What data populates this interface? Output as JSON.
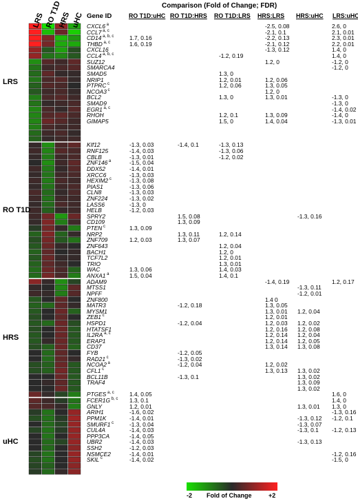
{
  "heatmap_columns": [
    "LRS",
    "RO T1D",
    "HRS",
    "uHC"
  ],
  "header": {
    "title": "Comparison (Fold of Change; FDR)",
    "gene_id": "Gene ID",
    "comparisons": [
      "RO T1D:uHC",
      "RO T1D:HRS",
      "RO T1D:LRS",
      "HRS:LRS",
      "HRS:uHC",
      "LRS:uHC"
    ]
  },
  "groups": [
    {
      "label": "LRS",
      "start": 0,
      "end": 19
    },
    {
      "label": "RO T1D",
      "start": 20,
      "end": 42
    },
    {
      "label": "HRS",
      "start": 43,
      "end": 62
    },
    {
      "label": "uHC",
      "start": 63,
      "end": 77
    }
  ],
  "legend": {
    "min": "-2",
    "label": "Fold of Change",
    "max": "+2"
  },
  "colors": {
    "low": "#19e000",
    "mid": "#2a2a2a",
    "high": "#ff2020"
  },
  "genes": [
    {
      "name": "CXCL6",
      "sup": "a",
      "heat": [
        2.6,
        -2.0,
        1.0,
        -1.4
      ],
      "vals": [
        "",
        "",
        "",
        "-2.5, 0.08",
        "",
        "2.6, 0"
      ]
    },
    {
      "name": "CCL7",
      "sup": "a, c",
      "heat": [
        2.1,
        -1.6,
        0.6,
        -1.8
      ],
      "vals": [
        "",
        "",
        "",
        "-2.1, 0.1",
        "",
        "2.1, 0.01"
      ]
    },
    {
      "name": "CD14",
      "sup": "a, b, c",
      "heat": [
        2.0,
        0.8,
        -1.6,
        -1.2
      ],
      "vals": [
        "1.7, 0.16",
        "",
        "",
        "-2.2, 0.13",
        "",
        "2.3, 0.01"
      ]
    },
    {
      "name": "THBD",
      "sup": "a, c",
      "heat": [
        2.0,
        0.7,
        -1.4,
        -1.4
      ],
      "vals": [
        "1.6, 0.19",
        "",
        "",
        "-2.1, 0.12",
        "",
        "2.2, 0.01"
      ]
    },
    {
      "name": "CXCL16",
      "sup": "",
      "heat": [
        1.0,
        -0.5,
        -1.3,
        -0.4
      ],
      "vals": [
        "",
        "",
        "",
        "-1.3, 0.12",
        "",
        "1.4, 0"
      ]
    },
    {
      "name": "CCL4",
      "sup": "a, b, c",
      "heat": [
        1.0,
        -0.8,
        -1.0,
        -0.5
      ],
      "vals": [
        "",
        "",
        "-1.2, 0.19",
        "",
        "",
        "1.4, 0"
      ]
    },
    {
      "name": "SUZ12",
      "sup": "",
      "heat": [
        -1.1,
        0.4,
        0.2,
        0.5
      ],
      "vals": [
        "",
        "",
        "",
        "1.2, 0",
        "",
        "-1.2, 0"
      ]
    },
    {
      "name": "SMARCA4",
      "sup": "",
      "heat": [
        -0.8,
        0.2,
        0.3,
        0.4
      ],
      "vals": [
        "",
        "",
        "",
        "",
        "",
        "-1.2, 0"
      ]
    },
    {
      "name": "SMAD5",
      "sup": "",
      "heat": [
        -0.7,
        0.5,
        0.1,
        0.1
      ],
      "vals": [
        "",
        "",
        "1.3, 0",
        "",
        "",
        ""
      ]
    },
    {
      "name": "NRIP1",
      "sup": "",
      "heat": [
        -0.8,
        0.3,
        0.4,
        0.1
      ],
      "vals": [
        "",
        "",
        "1.2, 0.01",
        "1.2, 0.06",
        "",
        ""
      ]
    },
    {
      "name": "PTPRC",
      "sup": "c",
      "heat": [
        -0.6,
        0.4,
        0.3,
        0.0
      ],
      "vals": [
        "",
        "",
        "1.2, 0.06",
        "1.3, 0.05",
        "",
        ""
      ]
    },
    {
      "name": "NCOA3",
      "sup": "c",
      "heat": [
        -0.5,
        0.2,
        0.3,
        0.1
      ],
      "vals": [
        "",
        "",
        "",
        "1.2, 0",
        "",
        ""
      ]
    },
    {
      "name": "BCL2",
      "sup": "",
      "heat": [
        -0.9,
        0.3,
        0.4,
        0.2
      ],
      "vals": [
        "",
        "",
        "1.3, 0",
        "1.3, 0.01",
        "",
        "-1.3, 0"
      ]
    },
    {
      "name": "SMAD9",
      "sup": "",
      "heat": [
        -0.8,
        0.1,
        0.2,
        0.3
      ],
      "vals": [
        "",
        "",
        "",
        "",
        "",
        "-1.3, 0"
      ]
    },
    {
      "name": "EGR1",
      "sup": "a, c",
      "heat": [
        -1.0,
        0.3,
        0.1,
        0.4
      ],
      "vals": [
        "",
        "",
        "",
        "",
        "",
        "-1.4, 0.02"
      ]
    },
    {
      "name": "RHOH",
      "sup": "",
      "heat": [
        -1.0,
        0.4,
        0.5,
        0.3
      ],
      "vals": [
        "",
        "",
        "1.2, 0.1",
        "1.3, 0.09",
        "",
        "-1.4, 0"
      ]
    },
    {
      "name": "GIMAP5",
      "sup": "",
      "heat": [
        -1.0,
        0.6,
        0.4,
        0.2
      ],
      "vals": [
        "",
        "",
        "1.5, 0",
        "1.4, 0.04",
        "",
        "-1.3, 0.01"
      ]
    },
    {
      "name": "",
      "sup": "",
      "heat": [
        -0.9,
        0.3,
        0.2,
        0.2
      ],
      "vals": [
        "",
        "",
        "",
        "",
        "",
        ""
      ]
    },
    {
      "name": "",
      "sup": "",
      "heat": [
        -0.7,
        0.2,
        0.3,
        0.1
      ],
      "vals": [
        "",
        "",
        "",
        "",
        "",
        ""
      ]
    },
    {
      "name": "",
      "sup": "",
      "heat": [
        -0.6,
        0.1,
        0.2,
        0.2
      ],
      "vals": [
        "",
        "",
        "",
        "",
        "",
        ""
      ]
    },
    {
      "name": "KIf12",
      "sup": "",
      "heat": [
        0.1,
        -1.1,
        0.3,
        0.5
      ],
      "vals": [
        "-1.3, 0.03",
        "-1.4, 0.1",
        "-1.3, 0.13",
        "",
        "",
        ""
      ]
    },
    {
      "name": "RNF125",
      "sup": "",
      "heat": [
        0.2,
        -1.0,
        0.4,
        0.3
      ],
      "vals": [
        "-1.4, 0.03",
        "",
        "-1.3, 0.06",
        "",
        "",
        ""
      ]
    },
    {
      "name": "CBLB",
      "sup": "",
      "heat": [
        0.1,
        -0.9,
        0.2,
        0.3
      ],
      "vals": [
        "-1.3, 0.01",
        "",
        "-1.2, 0.02",
        "",
        "",
        ""
      ]
    },
    {
      "name": "ZNF146",
      "sup": "a",
      "heat": [
        0.0,
        -1.1,
        0.2,
        0.5
      ],
      "vals": [
        "-1.5, 0.04",
        "",
        "",
        "",
        "",
        ""
      ]
    },
    {
      "name": "DDX52",
      "sup": "",
      "heat": [
        0.2,
        -0.9,
        0.1,
        0.4
      ],
      "vals": [
        "-1.4, 0.01",
        "",
        "",
        "",
        "",
        ""
      ]
    },
    {
      "name": "XRCC6",
      "sup": "",
      "heat": [
        0.1,
        -0.8,
        0.2,
        0.3
      ],
      "vals": [
        "-1.3, 0.03",
        "",
        "",
        "",
        "",
        ""
      ]
    },
    {
      "name": "HEXIM2",
      "sup": "c",
      "heat": [
        0.2,
        -0.9,
        0.3,
        0.2
      ],
      "vals": [
        "-1.3, 0.08",
        "",
        "",
        "",
        "",
        ""
      ]
    },
    {
      "name": "PIAS1",
      "sup": "",
      "heat": [
        0.1,
        -0.8,
        0.2,
        0.3
      ],
      "vals": [
        "-1.3, 0.06",
        "",
        "",
        "",
        "",
        ""
      ]
    },
    {
      "name": "CLN8",
      "sup": "",
      "heat": [
        0.3,
        -0.7,
        0.1,
        0.3
      ],
      "vals": [
        "-1.3, 0.03",
        "",
        "",
        "",
        "",
        ""
      ]
    },
    {
      "name": "ZNF224",
      "sup": "",
      "heat": [
        0.2,
        -0.8,
        0.2,
        0.2
      ],
      "vals": [
        "-1.3, 0.02",
        "",
        "",
        "",
        "",
        ""
      ]
    },
    {
      "name": "LASS6",
      "sup": "",
      "heat": [
        0.1,
        -0.7,
        0.3,
        0.2
      ],
      "vals": [
        "-1.3, 0",
        "",
        "",
        "",
        "",
        ""
      ]
    },
    {
      "name": "HELB",
      "sup": "",
      "heat": [
        0.2,
        -0.6,
        0.1,
        0.2
      ],
      "vals": [
        "-1.2, 0.03",
        "",
        "",
        "",
        "",
        ""
      ]
    },
    {
      "name": "SPRY2",
      "sup": "",
      "heat": [
        0.2,
        0.7,
        -1.2,
        0.6
      ],
      "vals": [
        "",
        "1.5, 0.08",
        "",
        "",
        "-1.3, 0.16",
        ""
      ]
    },
    {
      "name": "CD109",
      "sup": "",
      "heat": [
        0.1,
        0.8,
        -0.9,
        0.2
      ],
      "vals": [
        "",
        "1.3, 0.09",
        "",
        "",
        "",
        ""
      ]
    },
    {
      "name": "PTEN",
      "sup": "c",
      "heat": [
        -0.2,
        0.7,
        0.1,
        -0.9
      ],
      "vals": [
        "1.3, 0.09",
        "",
        "",
        "",
        "",
        ""
      ]
    },
    {
      "name": "NRP2",
      "sup": "",
      "heat": [
        -0.6,
        0.8,
        -0.6,
        0.1
      ],
      "vals": [
        "",
        "1.3, 0.11",
        "1.2, 0.14",
        "",
        "",
        ""
      ]
    },
    {
      "name": "ZNF709",
      "sup": "",
      "heat": [
        -0.4,
        0.7,
        -0.5,
        -0.8
      ],
      "vals": [
        "1.2, 0.03",
        "1.3, 0.07",
        "",
        "",
        "",
        ""
      ]
    },
    {
      "name": "ZNF643",
      "sup": "",
      "heat": [
        -0.5,
        0.6,
        0.1,
        0.0
      ],
      "vals": [
        "",
        "",
        "1.2, 0.04",
        "",
        "",
        ""
      ]
    },
    {
      "name": "BACH1",
      "sup": "",
      "heat": [
        -0.6,
        0.5,
        0.0,
        0.1
      ],
      "vals": [
        "",
        "",
        "1.2, 0",
        "",
        "",
        ""
      ]
    },
    {
      "name": "TCF7L2",
      "sup": "",
      "heat": [
        -0.5,
        0.6,
        0.1,
        0.1
      ],
      "vals": [
        "",
        "",
        "1.2, 0.01",
        "",
        "",
        ""
      ]
    },
    {
      "name": "TRIO",
      "sup": "",
      "heat": [
        -0.6,
        0.5,
        0.2,
        0.0
      ],
      "vals": [
        "",
        "",
        "1.3, 0.01",
        "",
        "",
        ""
      ]
    },
    {
      "name": "WAC",
      "sup": "",
      "heat": [
        -0.7,
        0.6,
        0.3,
        -0.6
      ],
      "vals": [
        "1.3, 0.06",
        "",
        "1.4, 0.03",
        "",
        "",
        ""
      ]
    },
    {
      "name": "ANXA1",
      "sup": "a",
      "heat": [
        -0.7,
        0.7,
        0.3,
        -0.9
      ],
      "vals": [
        "1.5, 0.04",
        "",
        "1.4, 0.1",
        "",
        "",
        ""
      ]
    },
    {
      "name": "ADAM9",
      "sup": "",
      "heat": [
        0.9,
        0.1,
        -1.1,
        -0.3
      ],
      "vals": [
        "",
        "",
        "",
        "-1.4, 0.19",
        "",
        "1.2, 0.17"
      ]
    },
    {
      "name": "MTSS1",
      "sup": "",
      "heat": [
        0.1,
        0.0,
        -1.0,
        0.5
      ],
      "vals": [
        "",
        "",
        "",
        "",
        "-1.3, 0.11",
        ""
      ]
    },
    {
      "name": "NPFF",
      "sup": "",
      "heat": [
        0.2,
        0.1,
        -0.9,
        0.4
      ],
      "vals": [
        "",
        "",
        "",
        "",
        "-1.2, 0.01",
        ""
      ]
    },
    {
      "name": "ZNF800",
      "sup": "",
      "heat": [
        -0.5,
        0.0,
        0.5,
        0.0
      ],
      "vals": [
        "",
        "",
        "",
        "1.4 0",
        "",
        ""
      ]
    },
    {
      "name": "MATR3",
      "sup": "",
      "heat": [
        -0.6,
        -0.7,
        0.5,
        0.1
      ],
      "vals": [
        "",
        "-1.2, 0.18",
        "",
        "1.3, 0.05",
        "",
        ""
      ]
    },
    {
      "name": "MYSM1",
      "sup": "",
      "heat": [
        -0.5,
        0.0,
        0.6,
        -0.6
      ],
      "vals": [
        "",
        "",
        "",
        "1.3, 0.01",
        "1.2, 0.04",
        ""
      ]
    },
    {
      "name": "ZEB1",
      "sup": "c",
      "heat": [
        -0.4,
        0.0,
        0.5,
        0.0
      ],
      "vals": [
        "",
        "",
        "",
        "1.2, 0.01",
        "",
        ""
      ]
    },
    {
      "name": "HSPD1",
      "sup": "",
      "heat": [
        -0.5,
        -0.7,
        0.6,
        -0.4
      ],
      "vals": [
        "",
        "-1.2, 0.04",
        "",
        "1.2, 0.03",
        "1.2, 0.02",
        ""
      ]
    },
    {
      "name": "HTATSF1",
      "sup": "",
      "heat": [
        -0.4,
        0.0,
        0.6,
        -0.5
      ],
      "vals": [
        "",
        "",
        "",
        "1.2, 0.16",
        "1.2, 0.08",
        ""
      ]
    },
    {
      "name": "IL2RA",
      "sup": "a, c",
      "heat": [
        -0.5,
        0.0,
        0.6,
        -0.5
      ],
      "vals": [
        "",
        "",
        "",
        "1.2, 0.14",
        "1.2, 0.04",
        ""
      ]
    },
    {
      "name": "ERAP1",
      "sup": "",
      "heat": [
        -0.5,
        0.1,
        0.6,
        -0.5
      ],
      "vals": [
        "",
        "",
        "",
        "1.2, 0.14",
        "1.2, 0.05",
        ""
      ]
    },
    {
      "name": "CD37",
      "sup": "",
      "heat": [
        -0.4,
        -0.6,
        0.6,
        -0.6
      ],
      "vals": [
        "",
        "",
        "",
        "1.3, 0.14",
        "1.3, 0.08",
        ""
      ]
    },
    {
      "name": "FYB",
      "sup": "",
      "heat": [
        0.0,
        -0.7,
        0.5,
        0.0
      ],
      "vals": [
        "",
        "-1.2, 0.05",
        "",
        "",
        "",
        ""
      ]
    },
    {
      "name": "RAD21",
      "sup": "c",
      "heat": [
        0.0,
        -0.7,
        0.5,
        0.1
      ],
      "vals": [
        "",
        "-1.3, 0.02",
        "",
        "",
        "",
        ""
      ]
    },
    {
      "name": "NCOA2",
      "sup": "a",
      "heat": [
        -0.4,
        -0.6,
        0.6,
        -0.5
      ],
      "vals": [
        "",
        "-1.2, 0.04",
        "",
        "1.2, 0.02",
        "",
        ""
      ]
    },
    {
      "name": "CFL1",
      "sup": "c",
      "heat": [
        -0.4,
        -0.6,
        0.7,
        -0.5
      ],
      "vals": [
        "",
        "",
        "",
        "1.3, 0.13",
        "1.3, 0.02",
        ""
      ]
    },
    {
      "name": "BCL11B",
      "sup": "",
      "heat": [
        0.0,
        0.0,
        0.6,
        -0.5
      ],
      "vals": [
        "",
        "-1.3, 0.1",
        "",
        "",
        "1.3, 0.02",
        ""
      ]
    },
    {
      "name": "TRAF4",
      "sup": "",
      "heat": [
        0.0,
        0.1,
        0.5,
        -0.5
      ],
      "vals": [
        "",
        "",
        "",
        "",
        "1.3, 0.09",
        ""
      ]
    },
    {
      "name": "",
      "sup": "",
      "heat": [
        0.0,
        0.0,
        0.6,
        -0.5
      ],
      "vals": [
        "",
        "",
        "",
        "",
        "1.3, 0.02",
        ""
      ]
    },
    {
      "name": "PTGES",
      "sup": "a, c",
      "heat": [
        0.6,
        0.1,
        -0.3,
        -0.9
      ],
      "vals": [
        "1.4, 0.05",
        "",
        "",
        "",
        "",
        "1.6, 0"
      ]
    },
    {
      "name": "FCER1G",
      "sup": "b, c",
      "heat": [
        0.5,
        0.2,
        -0.2,
        -0.8
      ],
      "vals": [
        "1.3, 0.1",
        "",
        "",
        "",
        "",
        "1.4, 0"
      ]
    },
    {
      "name": "GNLY",
      "sup": "",
      "heat": [
        0.4,
        0.3,
        0.1,
        -0.9
      ],
      "vals": [
        "1.2, 0.01",
        "",
        "",
        "",
        "1.3, 0.01",
        "1.3, 0"
      ]
    },
    {
      "name": "ARIH1",
      "sup": "",
      "heat": [
        -0.2,
        -0.8,
        0.0,
        1.0
      ],
      "vals": [
        "-1.6, 0.02",
        "",
        "",
        "",
        "",
        "-1.3, 0.16"
      ]
    },
    {
      "name": "PPM1K",
      "sup": "",
      "heat": [
        -0.4,
        -0.8,
        -0.2,
        1.1
      ],
      "vals": [
        "-1.4, 0.01",
        "",
        "",
        "",
        "-1.3, 0.12",
        "-1.2, 0.1"
      ]
    },
    {
      "name": "SMURF1",
      "sup": "c",
      "heat": [
        0.0,
        -0.7,
        -0.3,
        1.0
      ],
      "vals": [
        "-1.3, 0.04",
        "",
        "",
        "",
        "-1.3, 0.07",
        ""
      ]
    },
    {
      "name": "CUL4A",
      "sup": "",
      "heat": [
        -0.3,
        -0.8,
        -0.2,
        1.0
      ],
      "vals": [
        "-1.4, 0.03",
        "",
        "",
        "",
        "-1.3, 0.1",
        "-1.2, 0.13"
      ]
    },
    {
      "name": "PPP3CA",
      "sup": "",
      "heat": [
        0.0,
        -0.8,
        0.0,
        1.0
      ],
      "vals": [
        "-1.4, 0.05",
        "",
        "",
        "",
        "",
        ""
      ]
    },
    {
      "name": "UBR2",
      "sup": "",
      "heat": [
        0.0,
        -0.7,
        -0.3,
        1.0
      ],
      "vals": [
        "-1.4, 0.03",
        "",
        "",
        "",
        "-1.3, 0.13",
        ""
      ]
    },
    {
      "name": "SSH2",
      "sup": "",
      "heat": [
        0.0,
        -0.7,
        0.0,
        0.9
      ],
      "vals": [
        "-1.2, 0.03",
        "",
        "",
        "",
        "",
        ""
      ]
    },
    {
      "name": "NSMCE2",
      "sup": "",
      "heat": [
        -0.3,
        -0.8,
        0.0,
        1.0
      ],
      "vals": [
        "-1.4, 0.01",
        "",
        "",
        "",
        "",
        "-1.2, 0.16"
      ]
    },
    {
      "name": "SKIL",
      "sup": "c",
      "heat": [
        -0.4,
        -0.8,
        0.0,
        1.0
      ],
      "vals": [
        "-1.4, 0.02",
        "",
        "",
        "",
        "",
        "-1.5, 0"
      ]
    },
    {
      "name": "",
      "sup": "",
      "heat": [
        -0.3,
        -0.6,
        0.0,
        0.9
      ],
      "vals": [
        "",
        "",
        "",
        "",
        "",
        ""
      ]
    },
    {
      "name": "",
      "sup": "",
      "heat": [
        -0.2,
        -0.7,
        0.1,
        0.9
      ],
      "vals": [
        "",
        "",
        "",
        "",
        "",
        ""
      ]
    }
  ]
}
